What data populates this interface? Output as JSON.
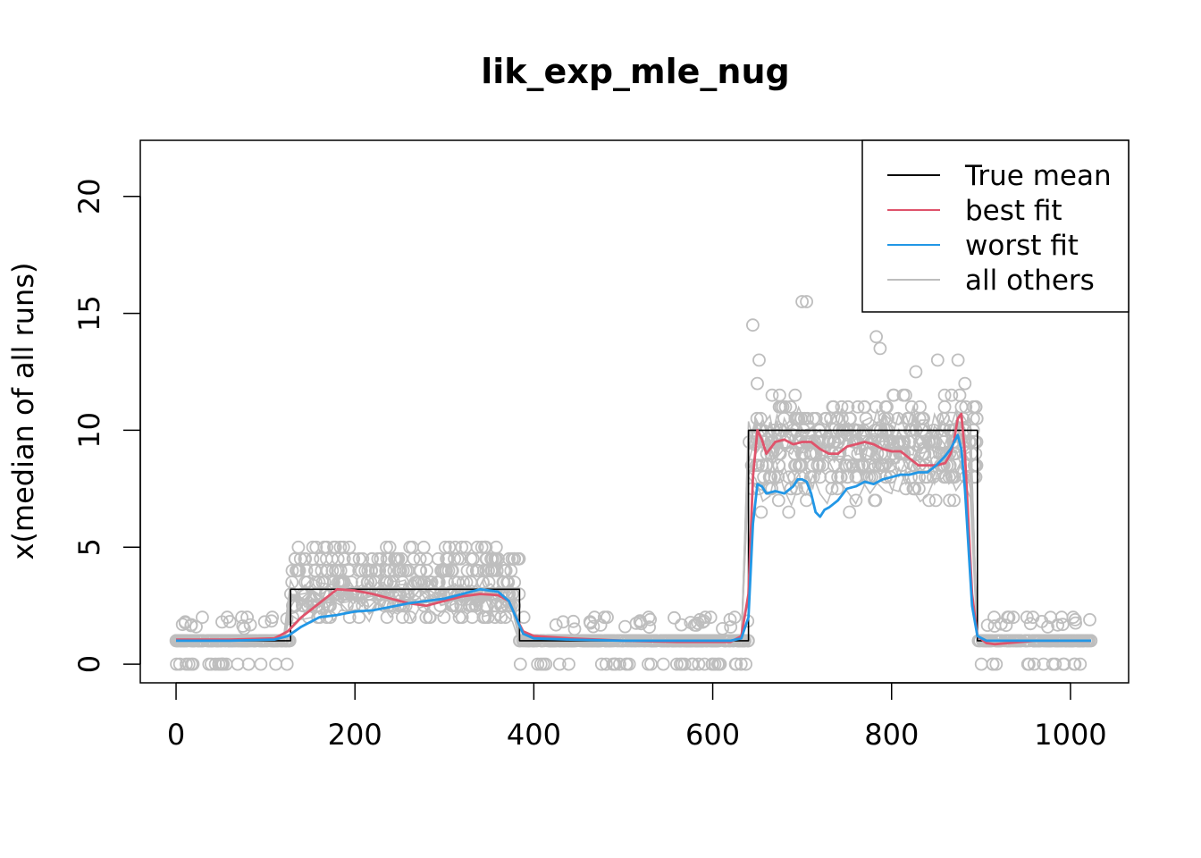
{
  "chart_data": {
    "type": "line",
    "title": "lik_exp_mle_nug",
    "xlabel": "",
    "ylabel": "x(median of all runs)",
    "xlim": [
      -40,
      1065
    ],
    "ylim": [
      -0.8,
      22.4
    ],
    "xticks": [
      0,
      200,
      400,
      600,
      800,
      1000
    ],
    "yticks": [
      0,
      5,
      10,
      15,
      20
    ],
    "legend_position": "top-right",
    "legend": [
      {
        "label": "True mean",
        "color": "#000000"
      },
      {
        "label": "best fit",
        "color": "#DF536B"
      },
      {
        "label": "worst fit",
        "color": "#2297E6"
      },
      {
        "label": "all others",
        "color": "#BEBEBE"
      }
    ],
    "series": [
      {
        "name": "True mean",
        "color": "#000000",
        "x": [
          0,
          128,
          128,
          384,
          384,
          640,
          640,
          896,
          896,
          1023
        ],
        "y": [
          1,
          1,
          3.2,
          3.2,
          1,
          1,
          10,
          10,
          1,
          1
        ]
      },
      {
        "name": "best fit",
        "color": "#DF536B",
        "x": [
          0,
          60,
          110,
          125,
          140,
          160,
          180,
          200,
          220,
          240,
          260,
          280,
          300,
          320,
          340,
          360,
          372,
          380,
          388,
          400,
          440,
          500,
          560,
          600,
          620,
          632,
          640,
          645,
          650,
          655,
          660,
          670,
          680,
          690,
          700,
          710,
          720,
          730,
          740,
          750,
          760,
          770,
          780,
          790,
          800,
          810,
          820,
          830,
          840,
          850,
          860,
          866,
          870,
          874,
          878,
          882,
          886,
          890,
          896,
          906,
          915,
          930,
          960,
          1000,
          1023
        ],
        "y": [
          1.05,
          1.05,
          1.1,
          1.4,
          2.0,
          2.6,
          3.2,
          3.15,
          3.0,
          2.8,
          2.6,
          2.5,
          2.7,
          2.9,
          3.0,
          2.95,
          2.7,
          2.0,
          1.4,
          1.2,
          1.1,
          1.0,
          0.95,
          0.95,
          0.95,
          1.2,
          3.0,
          8.0,
          10.0,
          9.6,
          9.0,
          9.5,
          9.6,
          9.4,
          9.5,
          9.5,
          9.2,
          9.0,
          9.0,
          9.3,
          9.4,
          9.5,
          9.4,
          9.2,
          9.1,
          9.1,
          8.8,
          8.5,
          8.5,
          8.5,
          8.6,
          9.0,
          9.6,
          10.5,
          10.7,
          9.0,
          6.0,
          3.0,
          1.2,
          0.9,
          0.85,
          0.9,
          1.0,
          1.0,
          1.0
        ]
      },
      {
        "name": "worst fit",
        "color": "#2297E6",
        "x": [
          0,
          60,
          110,
          125,
          140,
          160,
          180,
          200,
          220,
          240,
          260,
          280,
          300,
          320,
          340,
          360,
          372,
          380,
          388,
          400,
          440,
          500,
          560,
          600,
          620,
          632,
          640,
          645,
          650,
          655,
          660,
          670,
          680,
          690,
          695,
          700,
          705,
          710,
          715,
          720,
          725,
          730,
          740,
          750,
          760,
          770,
          780,
          790,
          800,
          810,
          820,
          830,
          840,
          850,
          860,
          866,
          870,
          874,
          878,
          882,
          886,
          890,
          896,
          906,
          915,
          930,
          960,
          1000,
          1023
        ],
        "y": [
          1.0,
          1.0,
          1.05,
          1.2,
          1.6,
          2.0,
          2.1,
          2.25,
          2.3,
          2.45,
          2.6,
          2.7,
          2.8,
          3.0,
          3.2,
          3.1,
          2.7,
          2.0,
          1.3,
          1.1,
          1.05,
          1.0,
          1.0,
          1.0,
          1.0,
          1.1,
          2.0,
          6.0,
          7.7,
          7.6,
          7.3,
          7.4,
          7.3,
          7.6,
          7.9,
          7.9,
          7.8,
          7.3,
          6.5,
          6.3,
          6.6,
          6.7,
          7.0,
          7.5,
          7.6,
          7.8,
          7.7,
          7.9,
          8.0,
          8.1,
          8.1,
          8.2,
          8.2,
          8.5,
          8.9,
          9.2,
          9.5,
          9.8,
          9.2,
          7.5,
          5.0,
          2.5,
          1.2,
          1.0,
          1.0,
          1.0,
          1.0,
          1.0,
          1.0
        ]
      }
    ]
  }
}
